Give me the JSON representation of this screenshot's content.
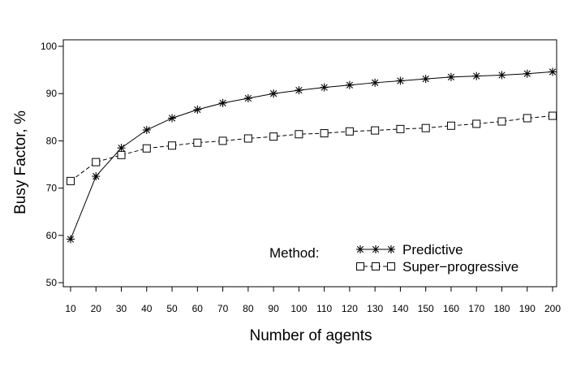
{
  "chart_data": {
    "type": "line",
    "xlabel": "Number of agents",
    "ylabel": "Busy Factor, %",
    "xlim": [
      10,
      200
    ],
    "ylim": [
      50,
      100
    ],
    "x": [
      10,
      20,
      30,
      40,
      50,
      60,
      70,
      80,
      90,
      100,
      110,
      120,
      130,
      140,
      150,
      160,
      170,
      180,
      190,
      200
    ],
    "xticks": [
      10,
      20,
      30,
      40,
      50,
      60,
      70,
      80,
      90,
      100,
      110,
      120,
      130,
      140,
      150,
      160,
      170,
      180,
      190,
      200
    ],
    "yticks": [
      50,
      60,
      70,
      80,
      90,
      100
    ],
    "grid": false,
    "legend": {
      "title": "Method:",
      "placement": "bottom-right"
    },
    "series": [
      {
        "name": "Predictive",
        "marker": "star",
        "line_style": "solid",
        "values": [
          59.2,
          72.5,
          78.5,
          82.3,
          84.8,
          86.6,
          88.0,
          89.0,
          90.0,
          90.7,
          91.3,
          91.8,
          92.3,
          92.7,
          93.1,
          93.5,
          93.7,
          93.9,
          94.2,
          94.6
        ]
      },
      {
        "name": "Super−progressive",
        "marker": "square",
        "line_style": "dashed",
        "values": [
          71.5,
          75.5,
          77.0,
          78.4,
          79.0,
          79.6,
          80.0,
          80.5,
          80.9,
          81.4,
          81.6,
          82.0,
          82.2,
          82.5,
          82.7,
          83.2,
          83.6,
          84.1,
          84.8,
          85.3
        ]
      }
    ]
  }
}
